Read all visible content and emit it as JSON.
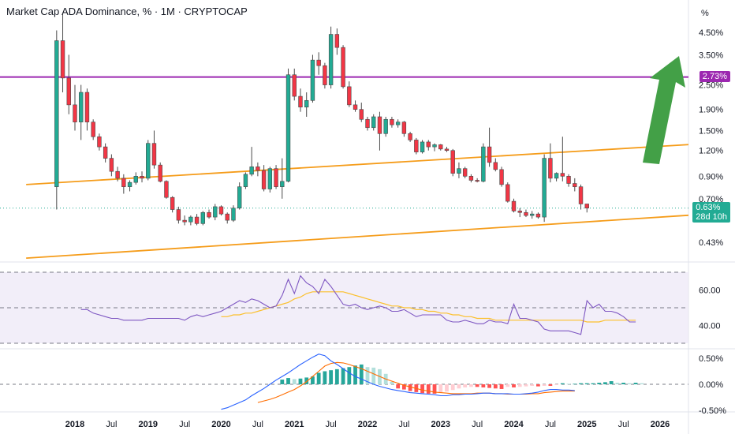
{
  "header": {
    "title": "Market Cap ADA Dominance, % · 1M · CRYPTOCAP"
  },
  "price_axis": {
    "unit_label": "%",
    "ticks": [
      "4.50%",
      "3.50%",
      "2.50%",
      "1.90%",
      "1.50%",
      "1.20%",
      "0.90%",
      "0.70%",
      "0.43%"
    ],
    "current": {
      "value": "0.63%",
      "countdown": "28d 10h",
      "color": "#22ab94"
    },
    "resistance": {
      "value": "2.73%",
      "color": "#9c27b0"
    }
  },
  "rsi_axis": {
    "ticks": [
      "60.00",
      "40.00"
    ]
  },
  "macd_axis": {
    "ticks": [
      "0.50%",
      "0.00%",
      "-0.50%"
    ]
  },
  "time_axis": {
    "labels": [
      "2018",
      "Jul",
      "2019",
      "Jul",
      "2020",
      "Jul",
      "2021",
      "Jul",
      "2022",
      "Jul",
      "2023",
      "Jul",
      "2024",
      "Jul",
      "2025",
      "Jul",
      "2026"
    ]
  },
  "colors": {
    "up": "#22ab94",
    "down": "#f23645",
    "trend": "#f59c1a",
    "resistance": "#9c27b0",
    "rsi": "#7e57c2",
    "rsi_ma": "#fbc02d",
    "macd": "#2962ff",
    "signal": "#ff6d00",
    "arrow": "#43a047"
  },
  "chart_data": [
    {
      "type": "candlestick",
      "title": "Market Cap ADA Dominance, % · 1M · CRYPTOCAP",
      "scale": "log",
      "x_start": "2017-10",
      "candles": [
        [
          0.8,
          4.6,
          0.62,
          4.1
        ],
        [
          4.1,
          5.5,
          2.3,
          2.7
        ],
        [
          2.7,
          3.5,
          1.8,
          2.0
        ],
        [
          2.0,
          2.5,
          1.5,
          1.65
        ],
        [
          1.65,
          2.5,
          1.35,
          2.3
        ],
        [
          2.3,
          2.4,
          1.5,
          1.65
        ],
        [
          1.65,
          1.7,
          1.35,
          1.4
        ],
        [
          1.4,
          1.45,
          1.2,
          1.25
        ],
        [
          1.25,
          1.3,
          1.05,
          1.1
        ],
        [
          1.1,
          1.15,
          0.9,
          0.95
        ],
        [
          0.95,
          1.0,
          0.85,
          0.88
        ],
        [
          0.88,
          0.92,
          0.74,
          0.8
        ],
        [
          0.8,
          0.86,
          0.76,
          0.84
        ],
        [
          0.84,
          0.94,
          0.82,
          0.9
        ],
        [
          0.9,
          0.95,
          0.84,
          0.88
        ],
        [
          0.88,
          1.35,
          0.86,
          1.3
        ],
        [
          1.3,
          1.5,
          0.98,
          1.02
        ],
        [
          1.02,
          1.05,
          0.84,
          0.85
        ],
        [
          0.85,
          0.86,
          0.7,
          0.71
        ],
        [
          0.71,
          0.72,
          0.6,
          0.62
        ],
        [
          0.62,
          0.64,
          0.53,
          0.55
        ],
        [
          0.55,
          0.58,
          0.52,
          0.54
        ],
        [
          0.54,
          0.58,
          0.52,
          0.57
        ],
        [
          0.57,
          0.59,
          0.52,
          0.53
        ],
        [
          0.53,
          0.61,
          0.52,
          0.6
        ],
        [
          0.6,
          0.62,
          0.56,
          0.57
        ],
        [
          0.57,
          0.66,
          0.55,
          0.64
        ],
        [
          0.64,
          0.65,
          0.58,
          0.59
        ],
        [
          0.59,
          0.6,
          0.53,
          0.55
        ],
        [
          0.55,
          0.65,
          0.54,
          0.63
        ],
        [
          0.63,
          0.84,
          0.62,
          0.8
        ],
        [
          0.8,
          0.94,
          0.78,
          0.92
        ],
        [
          0.92,
          1.25,
          0.9,
          1.0
        ],
        [
          1.0,
          1.05,
          0.9,
          0.96
        ],
        [
          0.96,
          1.02,
          0.76,
          0.78
        ],
        [
          0.78,
          1.0,
          0.75,
          0.98
        ],
        [
          0.98,
          1.02,
          0.78,
          0.8
        ],
        [
          0.8,
          1.1,
          0.7,
          0.85
        ],
        [
          0.85,
          3.0,
          0.84,
          2.8
        ],
        [
          2.8,
          3.0,
          2.1,
          2.2
        ],
        [
          2.2,
          2.4,
          1.85,
          1.95
        ],
        [
          1.95,
          2.3,
          1.75,
          2.1
        ],
        [
          2.1,
          3.5,
          2.05,
          3.3
        ],
        [
          3.3,
          3.6,
          2.8,
          3.1
        ],
        [
          3.1,
          3.2,
          2.4,
          2.5
        ],
        [
          2.5,
          4.8,
          2.4,
          4.4
        ],
        [
          4.4,
          4.7,
          3.5,
          3.8
        ],
        [
          3.8,
          3.9,
          2.4,
          2.45
        ],
        [
          2.45,
          2.6,
          1.95,
          2.0
        ],
        [
          2.0,
          2.1,
          1.85,
          1.9
        ],
        [
          1.9,
          2.05,
          1.65,
          1.7
        ],
        [
          1.7,
          1.75,
          1.5,
          1.55
        ],
        [
          1.55,
          1.8,
          1.5,
          1.75
        ],
        [
          1.75,
          1.85,
          1.2,
          1.45
        ],
        [
          1.45,
          1.75,
          1.4,
          1.7
        ],
        [
          1.7,
          1.75,
          1.55,
          1.6
        ],
        [
          1.6,
          1.7,
          1.55,
          1.65
        ],
        [
          1.65,
          1.67,
          1.4,
          1.45
        ],
        [
          1.45,
          1.48,
          1.32,
          1.35
        ],
        [
          1.35,
          1.38,
          1.15,
          1.18
        ],
        [
          1.18,
          1.35,
          1.16,
          1.32
        ],
        [
          1.32,
          1.35,
          1.2,
          1.25
        ],
        [
          1.25,
          1.3,
          1.19,
          1.28
        ],
        [
          1.28,
          1.29,
          1.2,
          1.22
        ],
        [
          1.22,
          1.25,
          1.18,
          1.2
        ],
        [
          1.2,
          1.22,
          0.9,
          0.93
        ],
        [
          0.93,
          1.05,
          0.88,
          0.98
        ],
        [
          0.98,
          1.0,
          0.88,
          0.9
        ],
        [
          0.9,
          0.92,
          0.84,
          0.86
        ],
        [
          0.86,
          0.88,
          0.84,
          0.85
        ],
        [
          0.85,
          1.3,
          0.84,
          1.25
        ],
        [
          1.25,
          1.55,
          1.0,
          1.05
        ],
        [
          1.05,
          1.1,
          0.95,
          0.97
        ],
        [
          0.97,
          1.0,
          0.8,
          0.82
        ],
        [
          0.82,
          0.84,
          0.67,
          0.68
        ],
        [
          0.68,
          0.7,
          0.6,
          0.61
        ],
        [
          0.61,
          0.63,
          0.57,
          0.6
        ],
        [
          0.6,
          0.62,
          0.57,
          0.58
        ],
        [
          0.58,
          0.61,
          0.56,
          0.59
        ],
        [
          0.59,
          0.6,
          0.56,
          0.57
        ],
        [
          0.57,
          1.15,
          0.54,
          1.1
        ],
        [
          1.1,
          1.3,
          0.84,
          0.88
        ],
        [
          0.88,
          0.94,
          0.85,
          0.93
        ],
        [
          0.93,
          1.4,
          0.85,
          0.9
        ],
        [
          0.9,
          0.92,
          0.8,
          0.83
        ],
        [
          0.83,
          0.88,
          0.76,
          0.8
        ],
        [
          0.8,
          0.82,
          0.62,
          0.66
        ],
        [
          0.66,
          0.66,
          0.6,
          0.63
        ]
      ],
      "series": [
        {
          "name": "",
          "kind": "trendline",
          "points": [
            [
              "2017-05",
              0.82
            ],
            [
              "2026-09",
              1.3
            ]
          ]
        },
        {
          "name": "",
          "kind": "trendline",
          "points": [
            [
              "2017-05",
              0.36
            ],
            [
              "2026-09",
              0.59
            ]
          ]
        },
        {
          "name": "",
          "kind": "hline",
          "value": 2.73
        }
      ],
      "ylim": [
        0.35,
        7.0
      ]
    },
    {
      "type": "line",
      "title": "",
      "series": [
        {
          "name": "",
          "values": [
            49,
            49,
            47,
            46,
            45,
            44,
            44,
            43,
            43,
            43,
            43,
            44,
            44,
            44,
            44,
            44,
            44,
            43,
            45,
            46,
            45,
            46,
            47,
            48,
            50,
            52,
            54,
            53,
            55,
            54,
            52,
            50,
            51,
            57,
            66,
            58,
            68,
            64,
            62,
            58,
            66,
            62,
            57,
            52,
            51,
            52,
            50,
            49,
            50,
            51,
            50,
            48,
            48,
            49,
            47,
            45,
            46,
            46,
            46,
            46,
            43,
            42,
            42,
            43,
            42,
            41,
            41,
            43,
            42,
            42,
            41,
            52,
            44,
            44,
            43,
            42,
            38,
            37,
            37,
            37,
            37,
            36,
            35,
            54,
            50,
            52,
            48,
            48,
            47,
            45,
            42,
            42
          ]
        },
        {
          "name": "",
          "values": [
            null,
            null,
            null,
            null,
            null,
            null,
            null,
            null,
            null,
            null,
            null,
            null,
            null,
            null,
            null,
            null,
            null,
            null,
            null,
            null,
            null,
            null,
            null,
            45,
            45,
            46,
            46,
            47,
            47,
            48,
            49,
            50,
            51,
            52,
            53,
            55,
            56,
            58,
            59,
            59,
            59,
            59,
            59,
            59,
            58,
            57,
            56,
            55,
            54,
            53,
            52,
            51,
            51,
            50,
            50,
            49,
            49,
            48,
            48,
            47,
            47,
            46,
            46,
            45,
            45,
            44,
            44,
            44,
            43,
            43,
            43,
            43,
            43,
            43,
            43,
            43,
            43,
            43,
            43,
            43,
            43,
            43,
            43,
            42,
            42,
            42,
            43,
            43,
            43,
            43,
            43,
            43
          ]
        }
      ],
      "ylim": [
        20,
        80
      ],
      "bands": [
        30,
        50,
        70
      ]
    },
    {
      "type": "bar",
      "title": "",
      "values": [
        0.09,
        0.12,
        0.1,
        0.11,
        0.13,
        0.15,
        0.22,
        0.25,
        0.27,
        0.29,
        0.31,
        0.33,
        0.36,
        0.38,
        0.33,
        0.32,
        0.29,
        0.2,
        0.05,
        -0.08,
        -0.1,
        -0.13,
        -0.15,
        -0.17,
        -0.18,
        -0.18,
        -0.16,
        -0.14,
        -0.11,
        -0.08,
        -0.06,
        -0.05,
        -0.05,
        -0.06,
        -0.07,
        -0.08,
        -0.09,
        -0.05,
        -0.06,
        -0.05,
        -0.04,
        -0.03,
        -0.04,
        -0.03,
        -0.03,
        -0.01,
        0.02,
        0.01,
        0.01,
        0.02,
        0.02,
        0.02,
        0.03,
        0.04,
        0.06,
        0.03,
        0.03,
        0.02,
        0.03,
        0.02
      ],
      "series": [
        {
          "name": "",
          "values": [
            -0.48,
            -0.45,
            -0.4,
            -0.35,
            -0.3,
            -0.22,
            -0.15,
            -0.08,
            0.0,
            0.08,
            0.15,
            0.22,
            0.3,
            0.38,
            0.45,
            0.52,
            0.58,
            0.55,
            0.45,
            0.38,
            0.3,
            0.22,
            0.15,
            0.1,
            0.05,
            0.0,
            -0.04,
            -0.07,
            -0.1,
            -0.12,
            -0.14,
            -0.16,
            -0.17,
            -0.18,
            -0.19,
            -0.2,
            -0.22,
            -0.22,
            -0.2,
            -0.2,
            -0.19,
            -0.19,
            -0.18,
            -0.17,
            -0.17,
            -0.18,
            -0.18,
            -0.18,
            -0.19,
            -0.19,
            -0.18,
            -0.17,
            -0.15,
            -0.12,
            -0.1,
            -0.1,
            -0.11,
            -0.11,
            -0.12
          ]
        },
        {
          "name": "",
          "values": [
            null,
            null,
            null,
            null,
            null,
            null,
            -0.35,
            -0.32,
            -0.29,
            -0.25,
            -0.2,
            -0.15,
            -0.1,
            -0.03,
            0.05,
            0.15,
            0.25,
            0.35,
            0.4,
            0.42,
            0.41,
            0.38,
            0.34,
            0.3,
            0.25,
            0.2,
            0.15,
            0.1,
            0.06,
            0.02,
            -0.02,
            -0.05,
            -0.08,
            -0.11,
            -0.13,
            -0.15,
            -0.16,
            -0.17,
            -0.18,
            -0.18,
            -0.18,
            -0.18,
            -0.17,
            -0.17,
            -0.17,
            -0.18,
            -0.18,
            -0.19,
            -0.19,
            -0.19,
            -0.19,
            -0.18,
            -0.18,
            -0.16,
            -0.15,
            -0.14,
            -0.13,
            -0.13,
            -0.13
          ]
        }
      ],
      "ylim": [
        -0.58,
        0.62
      ]
    }
  ]
}
